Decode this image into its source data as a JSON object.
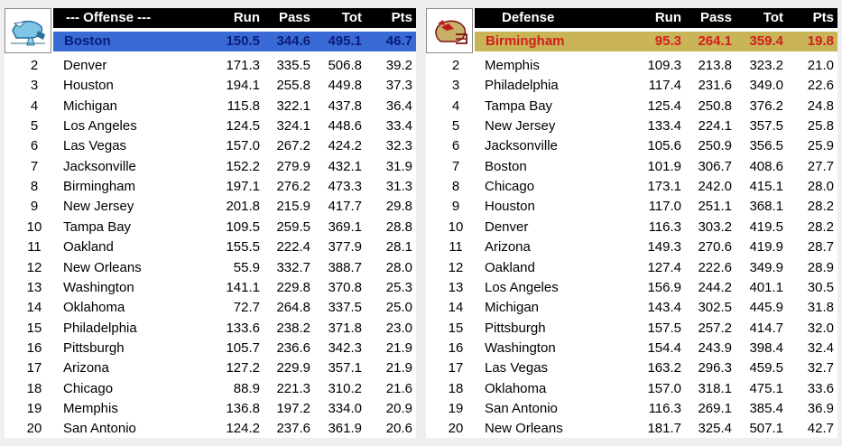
{
  "offense": {
    "header": {
      "title": "--- Offense ---",
      "run": "Run",
      "pass": "Pass",
      "tot": "Tot",
      "pts": "Pts"
    },
    "logo_icon": "wings-helmet-icon",
    "top": {
      "team": "Boston",
      "run": "150.5",
      "pass": "344.6",
      "tot": "495.1",
      "pts": "46.7"
    },
    "rows": [
      {
        "rank": "2",
        "team": "Denver",
        "run": "171.3",
        "pass": "335.5",
        "tot": "506.8",
        "pts": "39.2"
      },
      {
        "rank": "3",
        "team": "Houston",
        "run": "194.1",
        "pass": "255.8",
        "tot": "449.8",
        "pts": "37.3"
      },
      {
        "rank": "4",
        "team": "Michigan",
        "run": "115.8",
        "pass": "322.1",
        "tot": "437.8",
        "pts": "36.4"
      },
      {
        "rank": "5",
        "team": "Los Angeles",
        "run": "124.5",
        "pass": "324.1",
        "tot": "448.6",
        "pts": "33.4"
      },
      {
        "rank": "6",
        "team": "Las Vegas",
        "run": "157.0",
        "pass": "267.2",
        "tot": "424.2",
        "pts": "32.3"
      },
      {
        "rank": "7",
        "team": "Jacksonville",
        "run": "152.2",
        "pass": "279.9",
        "tot": "432.1",
        "pts": "31.9"
      },
      {
        "rank": "8",
        "team": "Birmingham",
        "run": "197.1",
        "pass": "276.2",
        "tot": "473.3",
        "pts": "31.3"
      },
      {
        "rank": "9",
        "team": "New Jersey",
        "run": "201.8",
        "pass": "215.9",
        "tot": "417.7",
        "pts": "29.8"
      },
      {
        "rank": "10",
        "team": "Tampa Bay",
        "run": "109.5",
        "pass": "259.5",
        "tot": "369.1",
        "pts": "28.8"
      },
      {
        "rank": "11",
        "team": "Oakland",
        "run": "155.5",
        "pass": "222.4",
        "tot": "377.9",
        "pts": "28.1"
      },
      {
        "rank": "12",
        "team": "New Orleans",
        "run": "55.9",
        "pass": "332.7",
        "tot": "388.7",
        "pts": "28.0"
      },
      {
        "rank": "13",
        "team": "Washington",
        "run": "141.1",
        "pass": "229.8",
        "tot": "370.8",
        "pts": "25.3"
      },
      {
        "rank": "14",
        "team": "Oklahoma",
        "run": "72.7",
        "pass": "264.8",
        "tot": "337.5",
        "pts": "25.0"
      },
      {
        "rank": "15",
        "team": "Philadelphia",
        "run": "133.6",
        "pass": "238.2",
        "tot": "371.8",
        "pts": "23.0"
      },
      {
        "rank": "16",
        "team": "Pittsburgh",
        "run": "105.7",
        "pass": "236.6",
        "tot": "342.3",
        "pts": "21.9"
      },
      {
        "rank": "17",
        "team": "Arizona",
        "run": "127.2",
        "pass": "229.9",
        "tot": "357.1",
        "pts": "21.9"
      },
      {
        "rank": "18",
        "team": "Chicago",
        "run": "88.9",
        "pass": "221.3",
        "tot": "310.2",
        "pts": "21.6"
      },
      {
        "rank": "19",
        "team": "Memphis",
        "run": "136.8",
        "pass": "197.2",
        "tot": "334.0",
        "pts": "20.9"
      },
      {
        "rank": "20",
        "team": "San Antonio",
        "run": "124.2",
        "pass": "237.6",
        "tot": "361.9",
        "pts": "20.6"
      }
    ]
  },
  "defense": {
    "header": {
      "title": "Defense",
      "run": "Run",
      "pass": "Pass",
      "tot": "Tot",
      "pts": "Pts"
    },
    "logo_icon": "red-helmet-icon",
    "top": {
      "team": "Birmingham",
      "run": "95.3",
      "pass": "264.1",
      "tot": "359.4",
      "pts": "19.8"
    },
    "rows": [
      {
        "rank": "2",
        "team": "Memphis",
        "run": "109.3",
        "pass": "213.8",
        "tot": "323.2",
        "pts": "21.0"
      },
      {
        "rank": "3",
        "team": "Philadelphia",
        "run": "117.4",
        "pass": "231.6",
        "tot": "349.0",
        "pts": "22.6"
      },
      {
        "rank": "4",
        "team": "Tampa Bay",
        "run": "125.4",
        "pass": "250.8",
        "tot": "376.2",
        "pts": "24.8"
      },
      {
        "rank": "5",
        "team": "New Jersey",
        "run": "133.4",
        "pass": "224.1",
        "tot": "357.5",
        "pts": "25.8"
      },
      {
        "rank": "6",
        "team": "Jacksonville",
        "run": "105.6",
        "pass": "250.9",
        "tot": "356.5",
        "pts": "25.9"
      },
      {
        "rank": "7",
        "team": "Boston",
        "run": "101.9",
        "pass": "306.7",
        "tot": "408.6",
        "pts": "27.7"
      },
      {
        "rank": "8",
        "team": "Chicago",
        "run": "173.1",
        "pass": "242.0",
        "tot": "415.1",
        "pts": "28.0"
      },
      {
        "rank": "9",
        "team": "Houston",
        "run": "117.0",
        "pass": "251.1",
        "tot": "368.1",
        "pts": "28.2"
      },
      {
        "rank": "10",
        "team": "Denver",
        "run": "116.3",
        "pass": "303.2",
        "tot": "419.5",
        "pts": "28.2"
      },
      {
        "rank": "11",
        "team": "Arizona",
        "run": "149.3",
        "pass": "270.6",
        "tot": "419.9",
        "pts": "28.7"
      },
      {
        "rank": "12",
        "team": "Oakland",
        "run": "127.4",
        "pass": "222.6",
        "tot": "349.9",
        "pts": "28.9"
      },
      {
        "rank": "13",
        "team": "Los Angeles",
        "run": "156.9",
        "pass": "244.2",
        "tot": "401.1",
        "pts": "30.5"
      },
      {
        "rank": "14",
        "team": "Michigan",
        "run": "143.4",
        "pass": "302.5",
        "tot": "445.9",
        "pts": "31.8"
      },
      {
        "rank": "15",
        "team": "Pittsburgh",
        "run": "157.5",
        "pass": "257.2",
        "tot": "414.7",
        "pts": "32.0"
      },
      {
        "rank": "16",
        "team": "Washington",
        "run": "154.4",
        "pass": "243.9",
        "tot": "398.4",
        "pts": "32.4"
      },
      {
        "rank": "17",
        "team": "Las Vegas",
        "run": "163.2",
        "pass": "296.3",
        "tot": "459.5",
        "pts": "32.7"
      },
      {
        "rank": "18",
        "team": "Oklahoma",
        "run": "157.0",
        "pass": "318.1",
        "tot": "475.1",
        "pts": "33.6"
      },
      {
        "rank": "19",
        "team": "San Antonio",
        "run": "116.3",
        "pass": "269.1",
        "tot": "385.4",
        "pts": "36.9"
      },
      {
        "rank": "20",
        "team": "New Orleans",
        "run": "181.7",
        "pass": "325.4",
        "tot": "507.1",
        "pts": "42.7"
      }
    ]
  },
  "colors": {
    "offense_highlight_bg": "#3a6ad6",
    "offense_highlight_text": "#0a1c78",
    "defense_highlight_bg": "#c9b457",
    "defense_highlight_text": "#d21e1e",
    "header_bg": "#000000"
  }
}
